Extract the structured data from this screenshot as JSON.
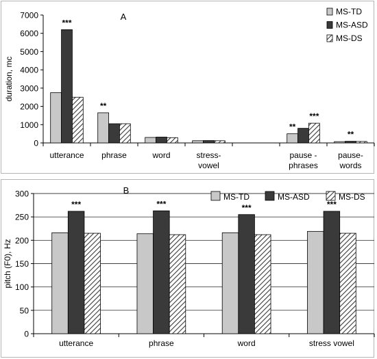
{
  "colors": {
    "MS-TD": "#c8c8c8",
    "MS-ASD": "#3a3a3a",
    "MS-DS": "hatch",
    "axis": "#000000",
    "grid": "#000000"
  },
  "chart_data": [
    {
      "type": "bar",
      "panel_label": "A",
      "ylabel": "duration, mc",
      "xlabel": "",
      "ylim": [
        0,
        7000
      ],
      "yticks": [
        "0",
        "1000",
        "2000",
        "3000",
        "4000",
        "5000",
        "6000",
        "7000"
      ],
      "legend_position": "top-right",
      "categories": [
        "utterance",
        "phrase",
        "word",
        "stress-\nvowel",
        "",
        "pause -\nphrases",
        "pause-\nwords"
      ],
      "series": [
        {
          "name": "MS-TD",
          "values": [
            2750,
            1650,
            300,
            120,
            null,
            500,
            70
          ]
        },
        {
          "name": "MS-ASD",
          "values": [
            6200,
            1050,
            320,
            130,
            null,
            800,
            90
          ]
        },
        {
          "name": "MS-DS",
          "values": [
            2500,
            1050,
            290,
            120,
            null,
            1080,
            80
          ]
        }
      ],
      "annotations": [
        {
          "category_index": 0,
          "series_index": 1,
          "text": "***"
        },
        {
          "category_index": 1,
          "series_index": 0,
          "text": "**"
        },
        {
          "category_index": 5,
          "series_index": 0,
          "text": "**"
        },
        {
          "category_index": 5,
          "series_index": 2,
          "text": "***"
        },
        {
          "category_index": 6,
          "series_index": 1,
          "text": "**"
        }
      ]
    },
    {
      "type": "bar",
      "panel_label": "B",
      "ylabel": "pitch (F0), Hz",
      "xlabel": "",
      "ylim": [
        0,
        300
      ],
      "yticks": [
        "0",
        "50",
        "100",
        "150",
        "200",
        "250",
        "300"
      ],
      "legend_position": "top",
      "grid": true,
      "categories": [
        "utterance",
        "phrase",
        "word",
        "stress vowel"
      ],
      "series": [
        {
          "name": "MS-TD",
          "values": [
            216,
            214,
            216,
            219
          ]
        },
        {
          "name": "MS-ASD",
          "values": [
            262,
            263,
            255,
            262
          ]
        },
        {
          "name": "MS-DS",
          "values": [
            215,
            212,
            212,
            215
          ]
        }
      ],
      "annotations": [
        {
          "category_index": 0,
          "series_index": 1,
          "text": "***"
        },
        {
          "category_index": 1,
          "series_index": 1,
          "text": "***"
        },
        {
          "category_index": 2,
          "series_index": 1,
          "text": "***"
        },
        {
          "category_index": 3,
          "series_index": 1,
          "text": "***"
        }
      ]
    }
  ]
}
